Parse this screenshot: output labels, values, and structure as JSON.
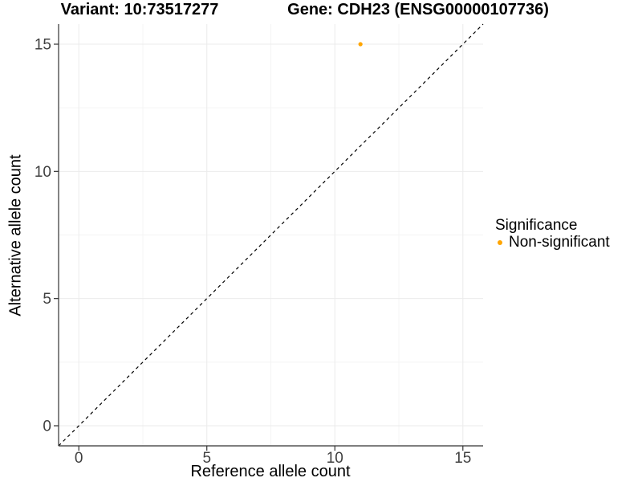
{
  "chart_data": {
    "type": "scatter",
    "title_left": "Variant: 10:73517277",
    "title_right": "Gene: CDH23 (ENSG00000107736)",
    "xlabel": "Reference allele count",
    "ylabel": "Alternative allele count",
    "xlim": [
      -0.79,
      15.79
    ],
    "ylim": [
      -0.79,
      15.79
    ],
    "xticks": [
      0,
      5,
      10,
      15
    ],
    "yticks": [
      0,
      5,
      10,
      15
    ],
    "minor_xticks": [
      2.5,
      7.5,
      12.5
    ],
    "minor_yticks": [
      2.5,
      7.5,
      12.5
    ],
    "grid": "major+minor",
    "points": [
      {
        "x": 11,
        "y": 15,
        "series": "Non-significant",
        "color": "#FFA500"
      }
    ],
    "identity_line": {
      "equation": "y = x",
      "style": "dashed",
      "color": "#000000"
    },
    "legend": {
      "position": "right",
      "title": "Significance",
      "items": [
        {
          "label": "Non-significant",
          "color": "#FFA500",
          "marker": "circle"
        }
      ]
    },
    "colors": {
      "background": "#FFFFFF",
      "grid_major": "#EBEBEB",
      "grid_minor": "#F4F4F4",
      "axis_line": "#333333",
      "tick_mark": "#333333",
      "tick_label": "#404040",
      "point": "#FFA500"
    }
  }
}
